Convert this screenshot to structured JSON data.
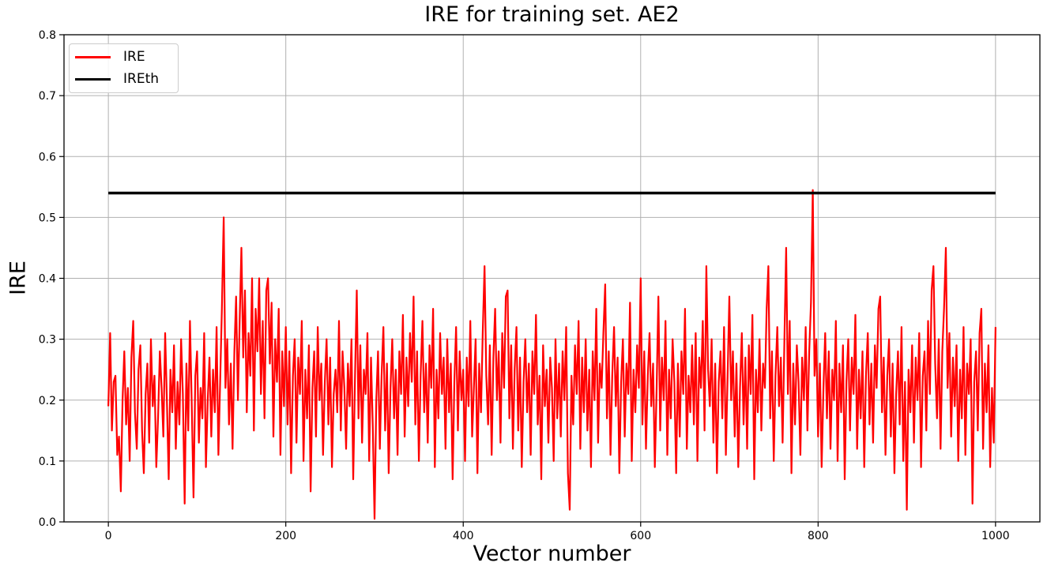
{
  "chart_data": {
    "type": "line",
    "title": "IRE for training set. AE2",
    "xlabel": "Vector number",
    "ylabel": "IRE",
    "xlim": [
      -50,
      1050
    ],
    "ylim": [
      0,
      0.8
    ],
    "xticks": [
      0,
      200,
      400,
      600,
      800,
      1000
    ],
    "xtick_labels": [
      "0",
      "200",
      "400",
      "600",
      "800",
      "1000"
    ],
    "yticks": [
      0,
      0.1,
      0.2,
      0.3,
      0.4,
      0.5,
      0.6,
      0.7,
      0.8
    ],
    "ytick_labels": [
      "0.0",
      "0.1",
      "0.2",
      "0.3",
      "0.4",
      "0.5",
      "0.6",
      "0.7",
      "0.8"
    ],
    "grid": true,
    "legend_position": "upper-left",
    "colors": {
      "background": "#ffffff",
      "grid": "#b0b0b0",
      "spine": "#000000",
      "text": "#000000",
      "legend_border": "#cccccc",
      "ire_line": "#ff0000",
      "threshold_line": "#000000"
    },
    "series": [
      {
        "name": "IRE",
        "type": "line",
        "color": "#ff0000",
        "x_start": 0,
        "x_step": 2,
        "values": [
          0.19,
          0.31,
          0.15,
          0.23,
          0.24,
          0.11,
          0.14,
          0.05,
          0.2,
          0.28,
          0.16,
          0.22,
          0.1,
          0.27,
          0.33,
          0.18,
          0.12,
          0.25,
          0.29,
          0.15,
          0.08,
          0.21,
          0.26,
          0.13,
          0.3,
          0.19,
          0.24,
          0.09,
          0.17,
          0.28,
          0.22,
          0.14,
          0.31,
          0.2,
          0.07,
          0.25,
          0.18,
          0.29,
          0.12,
          0.23,
          0.16,
          0.3,
          0.21,
          0.03,
          0.26,
          0.15,
          0.33,
          0.19,
          0.04,
          0.24,
          0.28,
          0.13,
          0.22,
          0.17,
          0.31,
          0.09,
          0.2,
          0.27,
          0.14,
          0.25,
          0.18,
          0.32,
          0.11,
          0.23,
          0.35,
          0.5,
          0.22,
          0.3,
          0.16,
          0.26,
          0.12,
          0.28,
          0.37,
          0.2,
          0.33,
          0.45,
          0.27,
          0.38,
          0.18,
          0.31,
          0.24,
          0.4,
          0.15,
          0.35,
          0.28,
          0.4,
          0.21,
          0.33,
          0.17,
          0.38,
          0.4,
          0.26,
          0.36,
          0.14,
          0.3,
          0.23,
          0.35,
          0.11,
          0.28,
          0.19,
          0.32,
          0.16,
          0.28,
          0.08,
          0.24,
          0.3,
          0.13,
          0.27,
          0.21,
          0.33,
          0.1,
          0.25,
          0.17,
          0.29,
          0.05,
          0.22,
          0.28,
          0.14,
          0.32,
          0.2,
          0.26,
          0.11,
          0.23,
          0.3,
          0.16,
          0.27,
          0.09,
          0.21,
          0.25,
          0.18,
          0.33,
          0.15,
          0.28,
          0.22,
          0.12,
          0.26,
          0.19,
          0.3,
          0.07,
          0.24,
          0.38,
          0.17,
          0.29,
          0.13,
          0.25,
          0.21,
          0.31,
          0.1,
          0.27,
          0.16,
          0.005,
          0.2,
          0.28,
          0.12,
          0.24,
          0.32,
          0.15,
          0.26,
          0.08,
          0.22,
          0.3,
          0.17,
          0.25,
          0.11,
          0.28,
          0.21,
          0.34,
          0.14,
          0.27,
          0.19,
          0.31,
          0.23,
          0.37,
          0.16,
          0.28,
          0.1,
          0.24,
          0.33,
          0.18,
          0.26,
          0.13,
          0.29,
          0.22,
          0.35,
          0.09,
          0.25,
          0.17,
          0.31,
          0.21,
          0.27,
          0.12,
          0.3,
          0.18,
          0.26,
          0.07,
          0.23,
          0.32,
          0.15,
          0.28,
          0.2,
          0.25,
          0.1,
          0.27,
          0.19,
          0.33,
          0.14,
          0.22,
          0.3,
          0.08,
          0.26,
          0.18,
          0.31,
          0.42,
          0.24,
          0.16,
          0.29,
          0.11,
          0.27,
          0.35,
          0.2,
          0.28,
          0.13,
          0.31,
          0.22,
          0.37,
          0.38,
          0.17,
          0.29,
          0.12,
          0.25,
          0.32,
          0.15,
          0.27,
          0.09,
          0.23,
          0.3,
          0.18,
          0.26,
          0.11,
          0.28,
          0.21,
          0.34,
          0.16,
          0.24,
          0.07,
          0.29,
          0.19,
          0.25,
          0.13,
          0.27,
          0.22,
          0.1,
          0.3,
          0.17,
          0.26,
          0.14,
          0.28,
          0.2,
          0.32,
          0.08,
          0.02,
          0.24,
          0.16,
          0.29,
          0.21,
          0.33,
          0.12,
          0.27,
          0.18,
          0.3,
          0.15,
          0.25,
          0.09,
          0.28,
          0.2,
          0.35,
          0.13,
          0.26,
          0.22,
          0.31,
          0.39,
          0.17,
          0.28,
          0.11,
          0.24,
          0.32,
          0.19,
          0.27,
          0.08,
          0.23,
          0.3,
          0.14,
          0.26,
          0.21,
          0.36,
          0.1,
          0.25,
          0.18,
          0.29,
          0.22,
          0.4,
          0.16,
          0.28,
          0.12,
          0.24,
          0.31,
          0.19,
          0.26,
          0.09,
          0.22,
          0.37,
          0.15,
          0.27,
          0.2,
          0.33,
          0.11,
          0.25,
          0.17,
          0.3,
          0.23,
          0.08,
          0.26,
          0.14,
          0.28,
          0.21,
          0.35,
          0.12,
          0.24,
          0.18,
          0.29,
          0.16,
          0.31,
          0.1,
          0.27,
          0.22,
          0.33,
          0.15,
          0.42,
          0.25,
          0.19,
          0.3,
          0.13,
          0.26,
          0.08,
          0.23,
          0.28,
          0.17,
          0.32,
          0.11,
          0.24,
          0.37,
          0.2,
          0.28,
          0.14,
          0.26,
          0.09,
          0.22,
          0.31,
          0.16,
          0.27,
          0.12,
          0.29,
          0.21,
          0.34,
          0.07,
          0.25,
          0.18,
          0.3,
          0.15,
          0.26,
          0.22,
          0.35,
          0.42,
          0.17,
          0.28,
          0.1,
          0.24,
          0.32,
          0.19,
          0.27,
          0.13,
          0.3,
          0.45,
          0.21,
          0.33,
          0.08,
          0.26,
          0.16,
          0.29,
          0.23,
          0.11,
          0.27,
          0.2,
          0.32,
          0.15,
          0.28,
          0.36,
          0.545,
          0.24,
          0.3,
          0.14,
          0.26,
          0.09,
          0.22,
          0.31,
          0.17,
          0.28,
          0.12,
          0.25,
          0.2,
          0.33,
          0.1,
          0.26,
          0.18,
          0.29,
          0.07,
          0.23,
          0.3,
          0.15,
          0.27,
          0.21,
          0.34,
          0.12,
          0.25,
          0.17,
          0.28,
          0.09,
          0.24,
          0.31,
          0.16,
          0.26,
          0.13,
          0.29,
          0.22,
          0.35,
          0.37,
          0.18,
          0.27,
          0.11,
          0.24,
          0.3,
          0.14,
          0.26,
          0.08,
          0.21,
          0.28,
          0.16,
          0.32,
          0.1,
          0.23,
          0.02,
          0.25,
          0.18,
          0.29,
          0.13,
          0.27,
          0.2,
          0.31,
          0.09,
          0.24,
          0.28,
          0.15,
          0.33,
          0.21,
          0.38,
          0.42,
          0.26,
          0.17,
          0.3,
          0.12,
          0.28,
          0.35,
          0.45,
          0.22,
          0.31,
          0.14,
          0.27,
          0.19,
          0.29,
          0.1,
          0.25,
          0.17,
          0.32,
          0.11,
          0.26,
          0.21,
          0.3,
          0.03,
          0.23,
          0.28,
          0.15,
          0.31,
          0.35,
          0.12,
          0.26,
          0.18,
          0.29,
          0.09,
          0.22,
          0.13,
          0.32
        ]
      },
      {
        "name": "IREth",
        "type": "hline",
        "color": "#000000",
        "value": 0.54,
        "x_range": [
          0,
          1000
        ]
      }
    ],
    "legend": {
      "items": [
        {
          "label": "IRE"
        },
        {
          "label": "IREth"
        }
      ]
    }
  }
}
